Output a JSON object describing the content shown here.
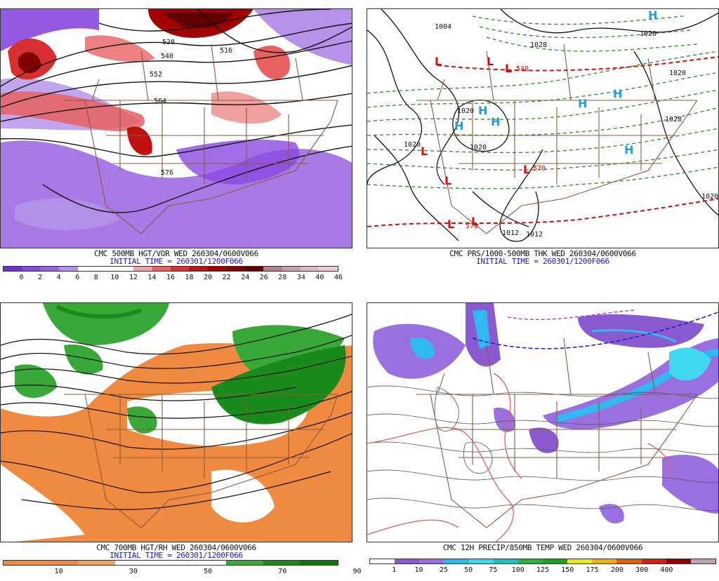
{
  "panels": [
    {
      "caption": "CMC 500MB HGT/VOR WED 260304/0600V066",
      "initial": "INITIAL TIME = 260301/1200F066",
      "contour_labels": [
        "528",
        "540",
        "552",
        "564",
        "516",
        "576"
      ],
      "colorbar": {
        "colors": [
          "#7030d0",
          "#8848e0",
          "#9a62e0",
          "#b090e8",
          "#ffffff",
          "#ffffff",
          "#ffffff",
          "#f0a0a0",
          "#e86060",
          "#d83030",
          "#c01010",
          "#a00000",
          "#800000",
          "#600000",
          "#b08090",
          "#c8a0b0",
          "#e0b8c8",
          "#f0c8d8"
        ],
        "ticks": [
          "0",
          "2",
          "4",
          "6",
          "8",
          "10",
          "12",
          "14",
          "16",
          "18",
          "20",
          "22",
          "24",
          "26",
          "28",
          "34",
          "40",
          "46"
        ]
      }
    },
    {
      "caption": "CMC PRS/1000-500MB THK WED 260304/0600V066",
      "initial": "INITIAL TIME = 260301/1200F066",
      "isobar_labels": [
        "1004",
        "1020",
        "1020",
        "1020",
        "1028",
        "1020",
        "1012",
        "1012",
        "1020",
        "1028",
        "1020"
      ],
      "thickness_labels": [
        "570",
        "570",
        "540"
      ],
      "highs": [
        "H",
        "H",
        "H",
        "H",
        "H",
        "H",
        "H"
      ],
      "lows": [
        "L",
        "L",
        "L",
        "L",
        "L",
        "L",
        "L",
        "L"
      ]
    },
    {
      "caption": "CMC 700MB HGT/RH WED 260304/0600V066",
      "initial": "INITIAL TIME = 260301/1200F066",
      "colorbar": {
        "colors": [
          "#f08a40",
          "#f08a40",
          "#f4a060",
          "#ffffff",
          "#ffffff",
          "#ffffff",
          "#38a838",
          "#1a8a1a",
          "#0a7a0a"
        ],
        "ticks": [
          "10",
          "30",
          "50",
          "70",
          "90"
        ]
      }
    },
    {
      "caption": "CMC 12H PRECIP/850MB TEMP WED 260304/0600V066",
      "colorbar": {
        "colors": [
          "#ffffff",
          "#8a5ad0",
          "#9a70e0",
          "#30b8f0",
          "#40d8f0",
          "#20c0c0",
          "#30b040",
          "#20a020",
          "#e8e820",
          "#f0b010",
          "#e06010",
          "#d02010",
          "#900000",
          "#c0a0b0"
        ],
        "ticks": [
          "1",
          "10",
          "25",
          "50",
          "75",
          "100",
          "125",
          "150",
          "175",
          "200",
          "300",
          "400"
        ]
      }
    }
  ]
}
